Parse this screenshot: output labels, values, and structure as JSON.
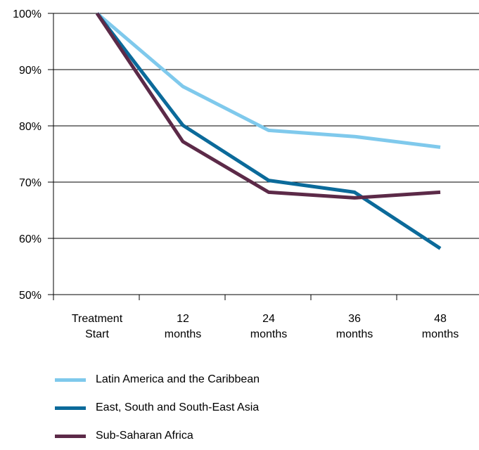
{
  "chart_data": {
    "type": "line",
    "categories": [
      [
        "Treatment",
        "Start"
      ],
      [
        "12",
        "months"
      ],
      [
        "24",
        "months"
      ],
      [
        "36",
        "months"
      ],
      [
        "48",
        "months"
      ]
    ],
    "yticks": [
      "50%",
      "60%",
      "70%",
      "80%",
      "90%",
      "100%"
    ],
    "ylim": [
      50,
      100
    ],
    "grid": true,
    "legend_position": "bottom",
    "series": [
      {
        "name": "Latin America and the Caribbean",
        "color": "#7fc9ec",
        "values": [
          100,
          87,
          79.2,
          78.1,
          76.2
        ]
      },
      {
        "name": "East, South and South-East Asia",
        "color": "#0b6a9a",
        "values": [
          100,
          80.1,
          70.3,
          68.2,
          58.2
        ]
      },
      {
        "name": "Sub-Saharan Africa",
        "color": "#5c2a48",
        "values": [
          100,
          77.2,
          68.2,
          67.2,
          68.2
        ]
      }
    ]
  }
}
